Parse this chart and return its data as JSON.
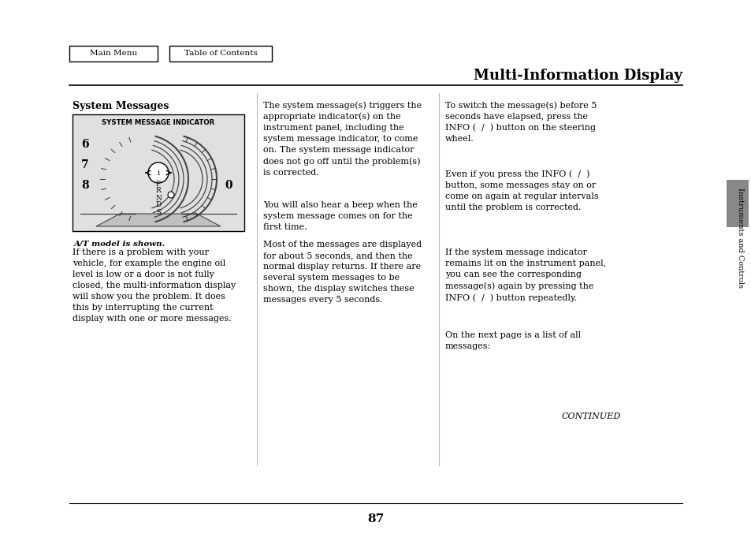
{
  "bg_color": "#ffffff",
  "page_title": "Multi-Information Display",
  "nav_buttons": [
    "Main Menu",
    "Table of Contents"
  ],
  "section_title": "System Messages",
  "diagram_title": "SYSTEM MESSAGE INDICATOR",
  "diagram_caption": "A/T model is shown.",
  "diagram_gear": [
    "P",
    "R",
    "N",
    "D",
    "S"
  ],
  "col1_body": "If there is a problem with your\nvehicle, for example the engine oil\nlevel is low or a door is not fully\nclosed, the multi-information display\nwill show you the problem. It does\nthis by interrupting the current\ndisplay with one or more messages.",
  "col2_para1": "The system message(s) triggers the\nappropriate indicator(s) on the\ninstrument panel, including the\nsystem message indicator, to come\non. The system message indicator\ndoes not go off until the problem(s)\nis corrected.",
  "col2_para2": "You will also hear a beep when the\nsystem message comes on for the\nfirst time.",
  "col2_para3": "Most of the messages are displayed\nfor about 5 seconds, and then the\nnormal display returns. If there are\nseveral system messages to be\nshown, the display switches these\nmessages every 5 seconds.",
  "col3_para1": "To switch the message(s) before 5\nseconds have elapsed, press the\nINFO (  /  ) button on the steering\nwheel.",
  "col3_para2": "Even if you press the INFO (  /  )\nbutton, some messages stay on or\ncome on again at regular intervals\nuntil the problem is corrected.",
  "col3_para3": "If the system message indicator\nremains lit on the instrument panel,\nyou can see the corresponding\nmessage(s) again by pressing the\nINFO (  /  ) button repeatedly.",
  "col3_para4": "On the next page is a list of all\nmessages:",
  "continued_text": "CONTINUED",
  "page_number": "87",
  "sidebar_text": "Instruments and Controls"
}
